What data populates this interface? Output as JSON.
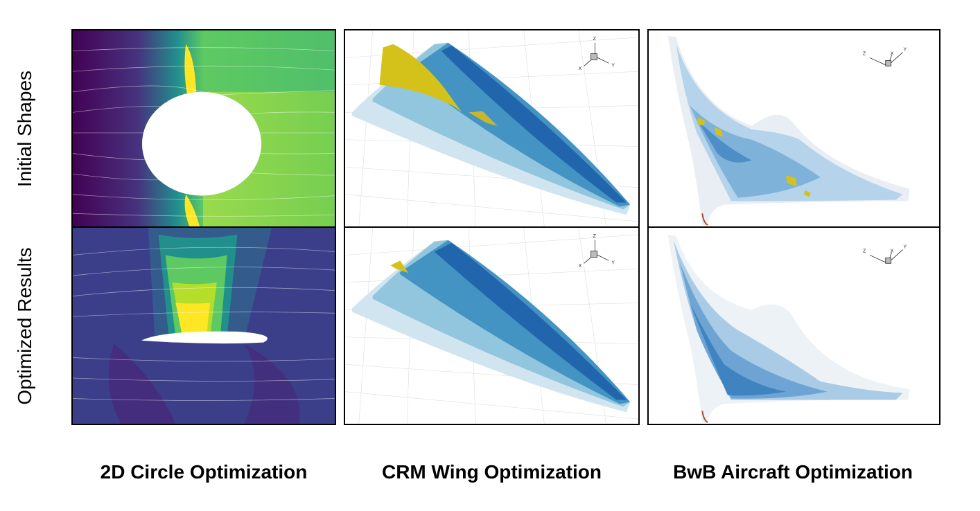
{
  "row_labels": {
    "initial": "Initial Shapes",
    "optimized": "Optimized Results"
  },
  "column_labels": {
    "circle": "2D Circle Optimization",
    "crm": "CRM Wing Optimization",
    "bwb": "BwB Aircraft Optimization"
  },
  "axis_triad": {
    "z": "Z",
    "x": "X",
    "y": "Y"
  },
  "colors": {
    "viridis_dark": "#440154",
    "viridis_blue": "#3b528b",
    "viridis_green": "#5ec962",
    "viridis_yellow": "#fde725",
    "wing_dark": "#2166ac",
    "wing_light": "#d1e5f0",
    "shock_yellow": "#d4c21a"
  }
}
